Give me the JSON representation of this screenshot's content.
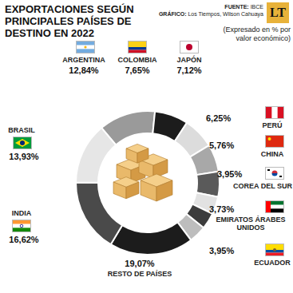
{
  "chart_data": {
    "type": "pie",
    "title": "EXPORTACIONES SEGÚN PRINCIPALES PAÍSES DE DESTINO EN 2022",
    "subtitle": "(Expresado en % por valor económico)",
    "source": "FUENTE: IBCE",
    "credit": "GRÁFICO: Los Tiempos, Wilson Cahuaya",
    "logo": "LT",
    "categories": [
      "ARGENTINA",
      "COLOMBIA",
      "JAPÓN",
      "PERÚ",
      "CHINA",
      "COREA DEL SUR",
      "EMIRATOS ÁRABES UNIDOS",
      "ECUADOR",
      "RESTO DE PAÍSES",
      "INDIA",
      "BRASIL"
    ],
    "values": [
      12.84,
      7.65,
      7.12,
      6.25,
      5.76,
      3.95,
      3.73,
      3.95,
      19.07,
      16.62,
      13.93
    ],
    "value_labels": [
      "12,84%",
      "7,65%",
      "7,12%",
      "6,25%",
      "5,76%",
      "3,95%",
      "3,73%",
      "3,95%",
      "19,07%",
      "16,62%",
      "13,93%"
    ],
    "colors": [
      "#9a9a9a",
      "#1c1c1c",
      "#dcdcdc",
      "#a8a8a8",
      "#5a5a5a",
      "#e2e2e2",
      "#3c3c3c",
      "#bdbdbd",
      "#1c1c1c",
      "#4a4a4a",
      "#e6e6e6"
    ],
    "data_labels": true
  }
}
